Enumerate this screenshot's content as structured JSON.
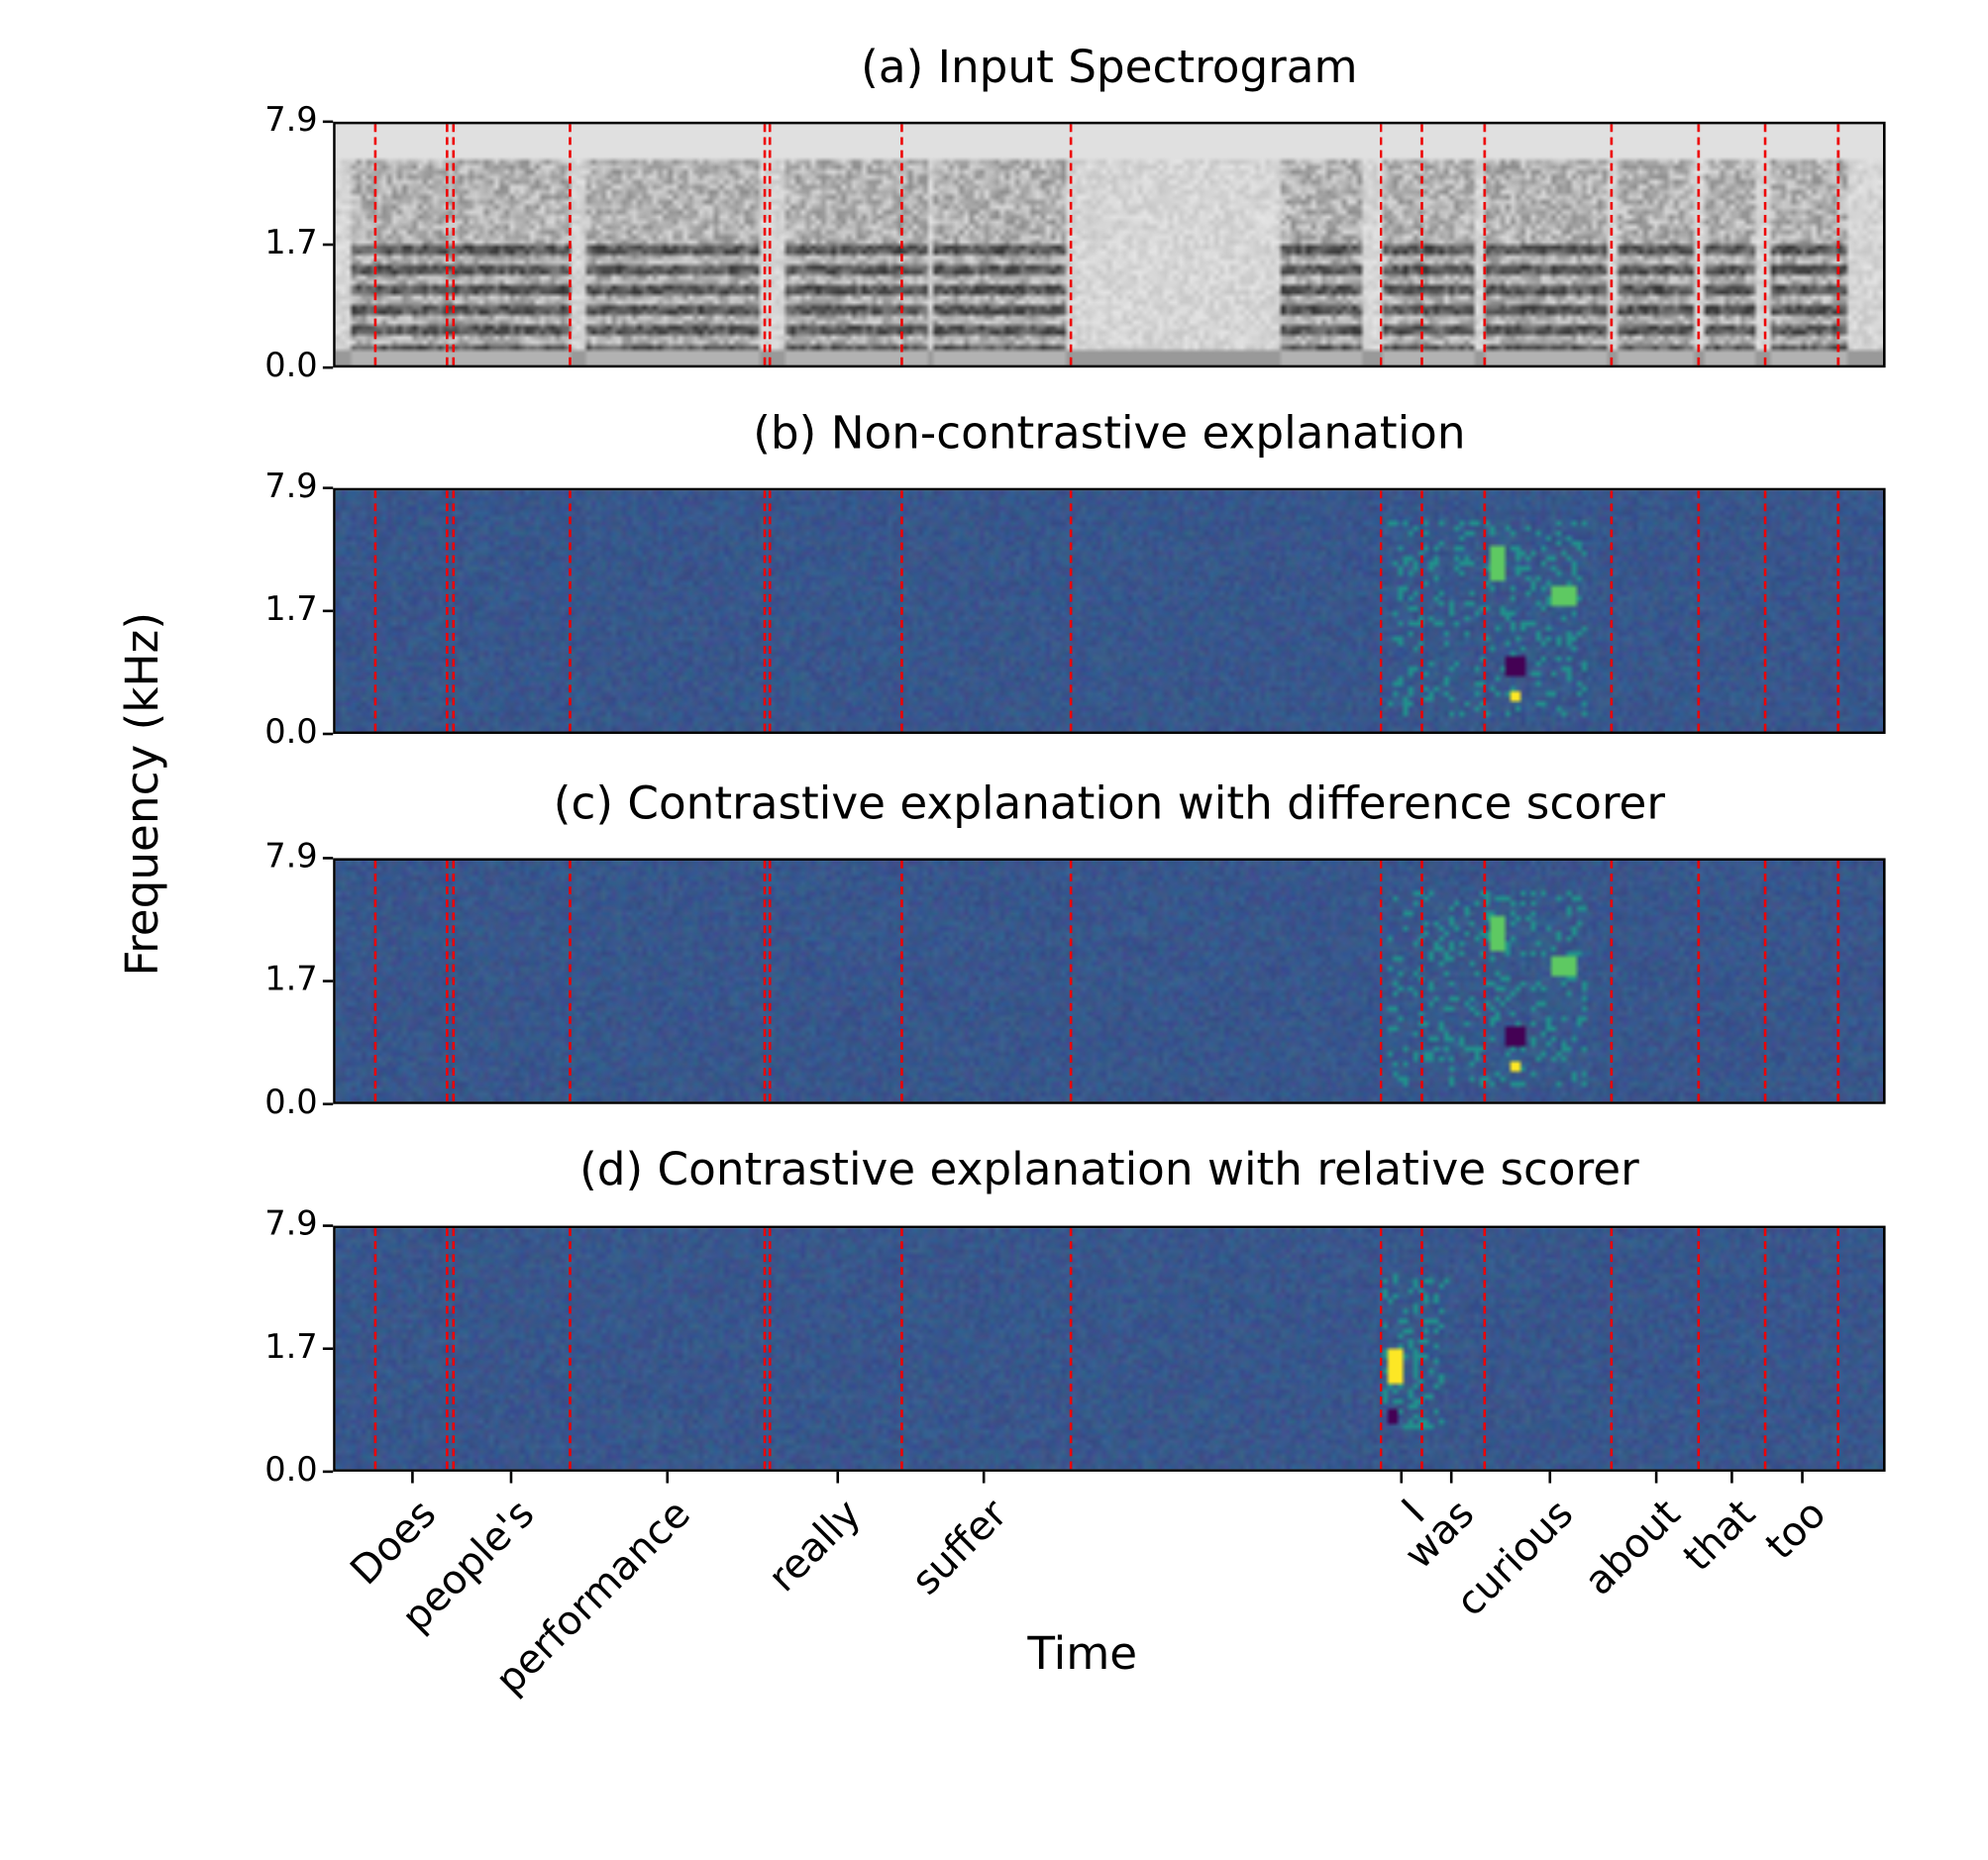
{
  "chart_data": [
    {
      "type": "heatmap",
      "title": "(a) Input Spectrogram",
      "colormap": "gray_r",
      "ylabel": "Frequency (kHz)",
      "yticks": [
        "0.0",
        "1.7",
        "7.9"
      ]
    },
    {
      "type": "heatmap",
      "title": "(b) Non-contrastive explanation",
      "colormap": "viridis",
      "yticks": [
        "0.0",
        "1.7",
        "7.9"
      ]
    },
    {
      "type": "heatmap",
      "title": "(c) Contrastive explanation with difference scorer",
      "colormap": "viridis",
      "yticks": [
        "0.0",
        "1.7",
        "7.9"
      ]
    },
    {
      "type": "heatmap",
      "title": "(d) Contrastive explanation with relative scorer",
      "colormap": "viridis",
      "yticks": [
        "0.0",
        "1.7",
        "7.9"
      ]
    }
  ],
  "ylabel": "Frequency (kHz)",
  "xlabel": "Time",
  "xtick_words": [
    "Does",
    "people's",
    "performance",
    "really",
    "suffer",
    "I",
    "was",
    "curious",
    "about",
    "that",
    "too"
  ],
  "boundary_color": "#e00000",
  "colors": {
    "viridis_bg": "#365c8d",
    "high": "#fde725",
    "mid": "#5ec962",
    "low": "#440154"
  }
}
